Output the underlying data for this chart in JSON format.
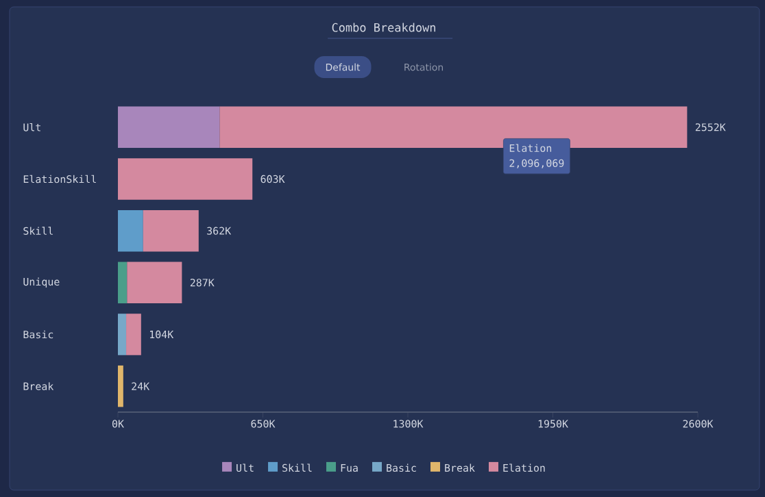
{
  "chart_data": {
    "type": "bar",
    "orientation": "horizontal",
    "stacked": true,
    "title": "Combo Breakdown",
    "categories": [
      "Ult",
      "ElationSkill",
      "Skill",
      "Unique",
      "Basic",
      "Break"
    ],
    "series": [
      {
        "name": "Ult",
        "color": "#a886bb",
        "values": [
          456,
          null,
          null,
          null,
          null,
          null
        ]
      },
      {
        "name": "Skill",
        "color": "#5f9dca",
        "values": [
          null,
          null,
          113,
          null,
          null,
          null
        ]
      },
      {
        "name": "Fua",
        "color": "#4a9e8a",
        "values": [
          null,
          null,
          null,
          41,
          null,
          null
        ]
      },
      {
        "name": "Basic",
        "color": "#77a8c8",
        "values": [
          null,
          null,
          null,
          null,
          37,
          null
        ]
      },
      {
        "name": "Break",
        "color": "#e0b66b",
        "values": [
          null,
          null,
          null,
          null,
          null,
          24
        ]
      },
      {
        "name": "Elation",
        "color": "#d4899f",
        "values": [
          2096,
          603,
          249,
          246,
          67,
          null
        ]
      }
    ],
    "totals": [
      "2552K",
      "603K",
      "362K",
      "287K",
      "104K",
      "24K"
    ],
    "xlim": [
      0,
      2600
    ],
    "xticks": [
      {
        "value": 0,
        "label": "0K"
      },
      {
        "value": 650,
        "label": "650K"
      },
      {
        "value": 1300,
        "label": "1300K"
      },
      {
        "value": 1950,
        "label": "1950K"
      },
      {
        "value": 2600,
        "label": "2600K"
      }
    ],
    "grid": false,
    "legend": "bottom",
    "annotations": [
      "Default",
      "Rotation",
      "Elation",
      "2,096,069"
    ]
  }
}
